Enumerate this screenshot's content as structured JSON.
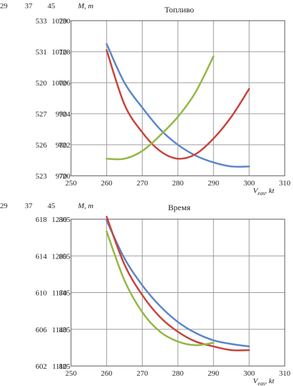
{
  "chart_data": [
    {
      "type": "line",
      "title": "Топливо",
      "xlabel_main": "V",
      "xlabel_sub": "eas",
      "xlabel_unit": ", kt",
      "ylabel": "M, т",
      "column_headers": [
        "29",
        "37",
        "45"
      ],
      "xlim": [
        250,
        310
      ],
      "x_ticks": [
        "250",
        "260",
        "270",
        "280",
        "290",
        "300",
        "310"
      ],
      "ylim": [
        970,
        1020
      ],
      "y_ticks": [
        "1020",
        "1010",
        "1000",
        "990",
        "980",
        "970"
      ],
      "extra_axes": [
        {
          "name": "37",
          "ticks": [
            "730",
            "728",
            "726",
            "724",
            "722",
            "720"
          ]
        },
        {
          "name": "29",
          "ticks": [
            "533",
            "531",
            "520",
            "527",
            "526",
            "523"
          ]
        }
      ],
      "series": [
        {
          "color": "#5b87c8",
          "x": [
            260,
            265,
            270,
            275,
            280,
            285,
            290,
            295,
            300
          ],
          "y": [
            1012.5,
            1000,
            992,
            985,
            980,
            976.5,
            974.3,
            973,
            973
          ]
        },
        {
          "color": "#c8443c",
          "x": [
            260,
            265,
            270,
            275,
            280,
            285,
            290,
            295,
            300
          ],
          "y": [
            1010.5,
            993,
            984,
            978,
            975.5,
            977,
            982,
            989,
            998
          ]
        },
        {
          "color": "#94b846",
          "x": [
            260,
            265,
            270,
            275,
            280,
            285,
            290
          ],
          "y": [
            975.5,
            975.5,
            978,
            983,
            989,
            997,
            1008.5
          ]
        }
      ]
    },
    {
      "type": "line",
      "title": "Время",
      "xlabel_main": "V",
      "xlabel_sub": "eas",
      "xlabel_unit": ", kt",
      "ylabel": "M, т",
      "column_headers": [
        "29",
        "37",
        "45"
      ],
      "xlim": [
        250,
        310
      ],
      "x_ticks": [
        "250",
        "260",
        "270",
        "280",
        "290",
        "300",
        "310"
      ],
      "ylim": [
        1110,
        1240
      ],
      "y_ticks": [
        "1230",
        "1200",
        "1170",
        "1140",
        "1110"
      ],
      "extra_axes": [
        {
          "name": "37",
          "ticks": [
            "865",
            "855",
            "845",
            "835",
            "825"
          ]
        },
        {
          "name": "29",
          "ticks": [
            "618",
            "614",
            "610",
            "606",
            "602"
          ]
        }
      ],
      "series": [
        {
          "color": "#5b87c8",
          "x": [
            260,
            265,
            270,
            275,
            280,
            285,
            290,
            295,
            300
          ],
          "y": [
            1229,
            1198,
            1176,
            1159,
            1146,
            1137,
            1131,
            1128,
            1126
          ]
        },
        {
          "color": "#c8443c",
          "x": [
            260,
            265,
            270,
            275,
            280,
            285,
            290,
            295,
            300
          ],
          "y": [
            1232,
            1193,
            1168,
            1150,
            1138,
            1130,
            1126,
            1123,
            1123
          ]
        },
        {
          "color": "#94b846",
          "x": [
            260,
            265,
            270,
            275,
            280,
            285,
            290
          ],
          "y": [
            1220,
            1180,
            1154,
            1138,
            1130,
            1127,
            1129
          ]
        }
      ]
    }
  ]
}
